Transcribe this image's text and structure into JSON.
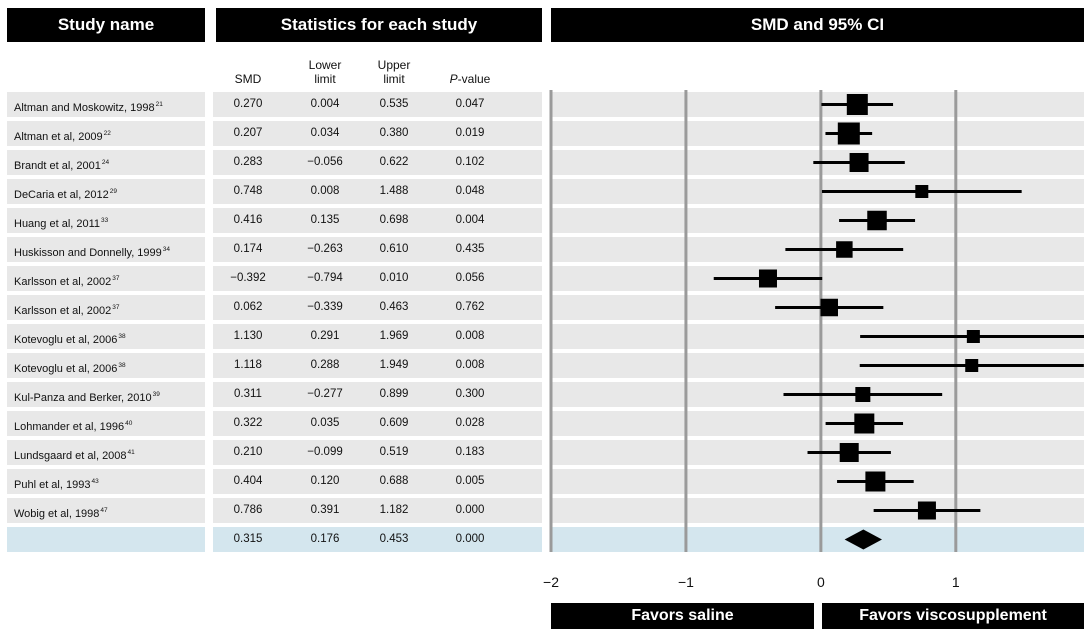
{
  "headers": {
    "study_name": "Study name",
    "statistics": "Statistics for each study",
    "plot": "SMD and 95% CI"
  },
  "columns": {
    "smd": "SMD",
    "lower_l1": "Lower",
    "lower_l2": "limit",
    "upper_l1": "Upper",
    "upper_l2": "limit",
    "pvalue": "P-value"
  },
  "studies": [
    {
      "name": "Altman and Moskowitz, 1998",
      "ref": "21",
      "smd": "0.270",
      "lower": "0.004",
      "upper": "0.535",
      "p": "0.047"
    },
    {
      "name": "Altman et al, 2009",
      "ref": "22",
      "smd": "0.207",
      "lower": "0.034",
      "upper": "0.380",
      "p": "0.019"
    },
    {
      "name": "Brandt et al, 2001",
      "ref": "24",
      "smd": "0.283",
      "lower": "−0.056",
      "upper": "0.622",
      "p": "0.102"
    },
    {
      "name": "DeCaria et al, 2012",
      "ref": "29",
      "smd": "0.748",
      "lower": "0.008",
      "upper": "1.488",
      "p": "0.048"
    },
    {
      "name": "Huang et al, 2011",
      "ref": "33",
      "smd": "0.416",
      "lower": "0.135",
      "upper": "0.698",
      "p": "0.004"
    },
    {
      "name": "Huskisson and Donnelly, 1999",
      "ref": "34",
      "smd": "0.174",
      "lower": "−0.263",
      "upper": "0.610",
      "p": "0.435"
    },
    {
      "name": "Karlsson et al, 2002",
      "ref": "37",
      "smd": "−0.392",
      "lower": "−0.794",
      "upper": "0.010",
      "p": "0.056"
    },
    {
      "name": "Karlsson et al, 2002",
      "ref": "37",
      "smd": "0.062",
      "lower": "−0.339",
      "upper": "0.463",
      "p": "0.762"
    },
    {
      "name": "Kotevoglu et al, 2006",
      "ref": "38",
      "smd": "1.130",
      "lower": "0.291",
      "upper": "1.969",
      "p": "0.008"
    },
    {
      "name": "Kotevoglu et al, 2006",
      "ref": "38",
      "smd": "1.118",
      "lower": "0.288",
      "upper": "1.949",
      "p": "0.008"
    },
    {
      "name": "Kul-Panza and Berker, 2010",
      "ref": "39",
      "smd": "0.311",
      "lower": "−0.277",
      "upper": "0.899",
      "p": "0.300"
    },
    {
      "name": "Lohmander et al, 1996",
      "ref": "40",
      "smd": "0.322",
      "lower": "0.035",
      "upper": "0.609",
      "p": "0.028"
    },
    {
      "name": "Lundsgaard et al, 2008",
      "ref": "41",
      "smd": "0.210",
      "lower": "−0.099",
      "upper": "0.519",
      "p": "0.183"
    },
    {
      "name": "Puhl et al, 1993",
      "ref": "43",
      "smd": "0.404",
      "lower": "0.120",
      "upper": "0.688",
      "p": "0.005"
    },
    {
      "name": "Wobig et al, 1998",
      "ref": "47",
      "smd": "0.786",
      "lower": "0.391",
      "upper": "1.182",
      "p": "0.000"
    }
  ],
  "summary": {
    "name": "",
    "smd": "0.315",
    "lower": "0.176",
    "upper": "0.453",
    "p": "0.000"
  },
  "footer": {
    "left": "Favors saline",
    "right": "Favors viscosupplement"
  },
  "colors": {
    "stripe": "#e8e8e8",
    "summary_band": "#d4e6ee",
    "header_bg": "#000000",
    "gridline": "#9a9a9a"
  },
  "chart_data": {
    "type": "forest",
    "xlim": [
      -2,
      1.95
    ],
    "xticks": [
      "−2",
      "−1",
      "0",
      "1"
    ],
    "tick_values": [
      -2,
      -1,
      0,
      1
    ],
    "series": [
      {
        "x": 0.27,
        "lo": 0.004,
        "hi": 0.535,
        "w": 3
      },
      {
        "x": 0.207,
        "lo": 0.034,
        "hi": 0.38,
        "w": 3.2
      },
      {
        "x": 0.283,
        "lo": -0.056,
        "hi": 0.622,
        "w": 2.6
      },
      {
        "x": 0.748,
        "lo": 0.008,
        "hi": 1.488,
        "w": 1.4
      },
      {
        "x": 0.416,
        "lo": 0.135,
        "hi": 0.698,
        "w": 2.7
      },
      {
        "x": 0.174,
        "lo": -0.263,
        "hi": 0.61,
        "w": 2.1
      },
      {
        "x": -0.392,
        "lo": -0.794,
        "hi": 0.01,
        "w": 2.4
      },
      {
        "x": 0.062,
        "lo": -0.339,
        "hi": 0.463,
        "w": 2.3
      },
      {
        "x": 1.13,
        "lo": 0.291,
        "hi": 1.969,
        "w": 1.4
      },
      {
        "x": 1.118,
        "lo": 0.288,
        "hi": 1.949,
        "w": 1.4
      },
      {
        "x": 0.311,
        "lo": -0.277,
        "hi": 0.899,
        "w": 1.8
      },
      {
        "x": 0.322,
        "lo": 0.035,
        "hi": 0.609,
        "w": 2.8
      },
      {
        "x": 0.21,
        "lo": -0.099,
        "hi": 0.519,
        "w": 2.6
      },
      {
        "x": 0.404,
        "lo": 0.12,
        "hi": 0.688,
        "w": 2.8
      },
      {
        "x": 0.786,
        "lo": 0.391,
        "hi": 1.182,
        "w": 2.4
      }
    ],
    "summary": {
      "x": 0.315,
      "lo": 0.176,
      "hi": 0.453
    }
  }
}
